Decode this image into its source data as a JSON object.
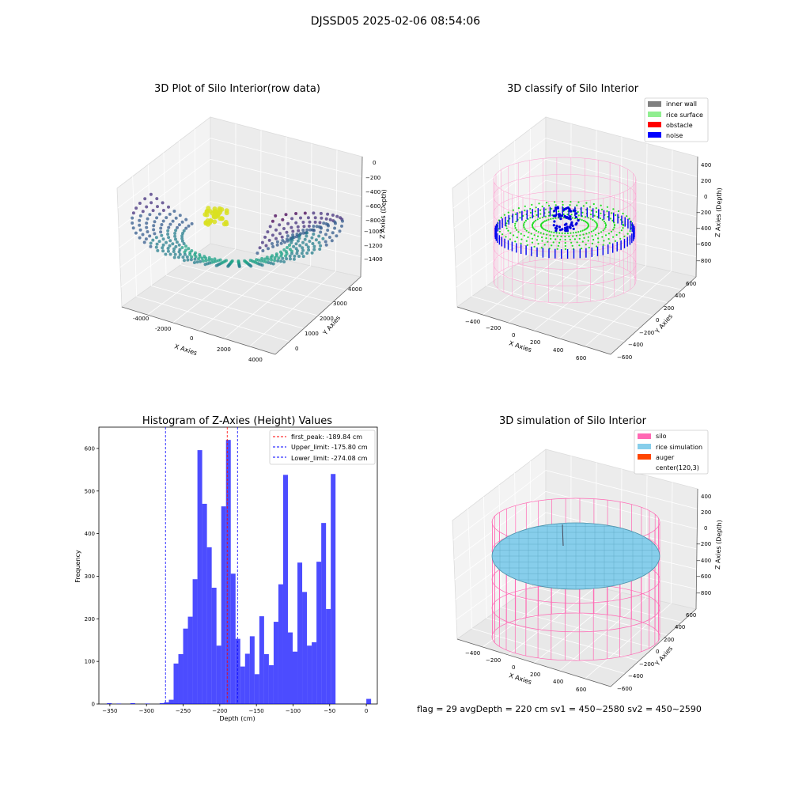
{
  "suptitle": "DJSSD05 2025-02-06 08:54:06",
  "footer": "flag = 29  avgDepth = 220 cm  sv1 = 450~2580  sv2 = 450~2590",
  "panels": {
    "raw": {
      "title": "3D Plot of Silo Interior(row data)",
      "xlabel": "X Axies",
      "ylabel": "Y Axies",
      "zlabel": "Z Axies (Depth)",
      "xticks": [
        "-4000",
        "-2000",
        "0",
        "2000",
        "4000"
      ],
      "yticks": [
        "0",
        "1000",
        "2000",
        "3000",
        "4000"
      ],
      "zticks": [
        "0",
        "−200",
        "−400",
        "−600",
        "−800",
        "−1000",
        "−1200",
        "−1400"
      ]
    },
    "classify": {
      "title": "3D classify of Silo Interior",
      "xlabel": "X Axies",
      "ylabel": "Y Axies",
      "zlabel": "Z Axies (Depth)",
      "xticks": [
        "−400",
        "−200",
        "0",
        "200",
        "400",
        "600"
      ],
      "yticks": [
        "−600",
        "−400",
        "−200",
        "0",
        "200",
        "400",
        "600"
      ],
      "zticks": [
        "400",
        "200",
        "0",
        "−200",
        "−400",
        "−600",
        "−800"
      ],
      "legend": [
        {
          "label": "inner wall",
          "color": "#808080"
        },
        {
          "label": "rice surface",
          "color": "#90ee90"
        },
        {
          "label": "obstacle",
          "color": "#ff0000"
        },
        {
          "label": "noise",
          "color": "#0000ff"
        }
      ]
    },
    "simulation": {
      "title": "3D simulation of Silo Interior",
      "xlabel": "X Axies",
      "ylabel": "Y Axies",
      "zlabel": "Z Axies (Depth)",
      "xticks": [
        "−400",
        "−200",
        "0",
        "200",
        "400",
        "600"
      ],
      "yticks": [
        "−600",
        "−400",
        "−200",
        "0",
        "200",
        "400",
        "600"
      ],
      "zticks": [
        "400",
        "200",
        "0",
        "−200",
        "−400",
        "−600",
        "−800"
      ],
      "legend": [
        {
          "label": "silo",
          "color": "#ff69b4"
        },
        {
          "label": "rice simulation",
          "color": "#87ceeb"
        },
        {
          "label": "auger",
          "color": "#ff4500"
        },
        {
          "label": "center(120,3)",
          "color": ""
        }
      ]
    }
  },
  "chart_data": [
    {
      "type": "scatter",
      "title": "3D Plot of Silo Interior(row data)",
      "xlabel": "X Axies",
      "ylabel": "Y Axies",
      "zlabel": "Z Axies (Depth)",
      "xlim": [
        -4500,
        4500
      ],
      "ylim": [
        -500,
        4500
      ],
      "zlim": [
        -1500,
        100
      ],
      "grid": true
    },
    {
      "type": "scatter",
      "title": "3D classify of Silo Interior",
      "xlabel": "X Axies",
      "ylabel": "Y Axies",
      "zlabel": "Z Axies (Depth)",
      "xlim": [
        -500,
        700
      ],
      "ylim": [
        -600,
        600
      ],
      "zlim": [
        -900,
        450
      ],
      "legend": [
        "inner wall",
        "rice surface",
        "obstacle",
        "noise"
      ],
      "legend_position": "top-right",
      "grid": true
    },
    {
      "type": "histogram",
      "title": "Histogram of Z-Axies (Height) Values",
      "xlabel": "Depth (cm)",
      "ylabel": "Frequency",
      "xlim": [
        -365,
        15
      ],
      "ylim": [
        0,
        650
      ],
      "xticks": [
        -350,
        -300,
        -250,
        -200,
        -150,
        -100,
        -50,
        0
      ],
      "yticks": [
        0,
        100,
        200,
        300,
        400,
        500,
        600
      ],
      "bin_width": 6.5,
      "bins": [
        {
          "x": -354,
          "count": 2
        },
        {
          "x": -341,
          "count": 1
        },
        {
          "x": -322,
          "count": 2
        },
        {
          "x": -302,
          "count": 1
        },
        {
          "x": -282,
          "count": 2
        },
        {
          "x": -276,
          "count": 4
        },
        {
          "x": -269.5,
          "count": 10
        },
        {
          "x": -263,
          "count": 95
        },
        {
          "x": -256.5,
          "count": 117
        },
        {
          "x": -250,
          "count": 177
        },
        {
          "x": -243.5,
          "count": 205
        },
        {
          "x": -237,
          "count": 293
        },
        {
          "x": -230.5,
          "count": 596
        },
        {
          "x": -224,
          "count": 470
        },
        {
          "x": -217.5,
          "count": 368
        },
        {
          "x": -211,
          "count": 273
        },
        {
          "x": -204.5,
          "count": 137
        },
        {
          "x": -198,
          "count": 464
        },
        {
          "x": -191.5,
          "count": 620
        },
        {
          "x": -185,
          "count": 306
        },
        {
          "x": -178.5,
          "count": 153
        },
        {
          "x": -172,
          "count": 88
        },
        {
          "x": -165.5,
          "count": 118
        },
        {
          "x": -159,
          "count": 159
        },
        {
          "x": -152.5,
          "count": 70
        },
        {
          "x": -146,
          "count": 206
        },
        {
          "x": -139.5,
          "count": 117
        },
        {
          "x": -133,
          "count": 91
        },
        {
          "x": -126.5,
          "count": 193
        },
        {
          "x": -120,
          "count": 281
        },
        {
          "x": -113.5,
          "count": 538
        },
        {
          "x": -107,
          "count": 168
        },
        {
          "x": -100.5,
          "count": 123
        },
        {
          "x": -94,
          "count": 332
        },
        {
          "x": -87.5,
          "count": 263
        },
        {
          "x": -81,
          "count": 137
        },
        {
          "x": -74.5,
          "count": 145
        },
        {
          "x": -68,
          "count": 334
        },
        {
          "x": -61.5,
          "count": 425
        },
        {
          "x": -55,
          "count": 223
        },
        {
          "x": -48.5,
          "count": 540
        },
        {
          "x": 0,
          "count": 12
        }
      ],
      "vlines": [
        {
          "label": "first_peak: -189.84 cm",
          "x": -189.84,
          "color": "#ff0000"
        },
        {
          "label": "Upper_limit: -175.80 cm",
          "x": -175.8,
          "color": "#0000ff"
        },
        {
          "label": "Lower_limit: -274.08 cm",
          "x": -274.08,
          "color": "#0000ff"
        }
      ],
      "bar_color": "#0000ff",
      "legend_position": "top-right"
    },
    {
      "type": "surface",
      "title": "3D simulation of Silo Interior",
      "xlabel": "X Axies",
      "ylabel": "Y Axies",
      "zlabel": "Z Axies (Depth)",
      "xlim": [
        -500,
        700
      ],
      "ylim": [
        -600,
        600
      ],
      "zlim": [
        -900,
        450
      ],
      "legend": [
        "silo",
        "rice simulation",
        "auger",
        "center(120,3)"
      ],
      "legend_position": "top-right",
      "grid": true
    }
  ]
}
